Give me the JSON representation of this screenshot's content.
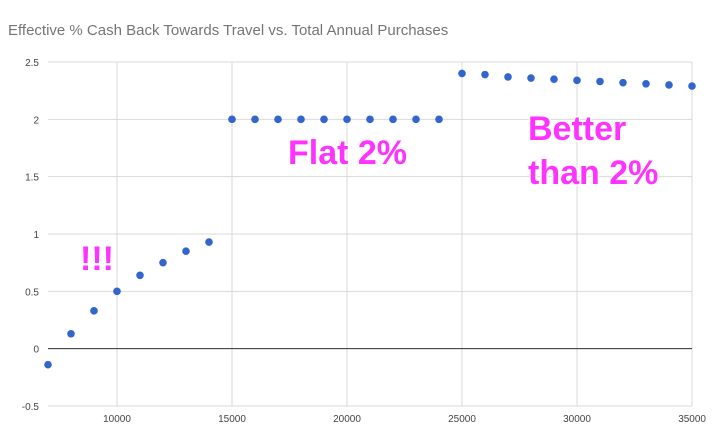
{
  "chart_data": {
    "type": "scatter",
    "title": "Effective % Cash Back Towards Travel vs. Total Annual Purchases",
    "xlabel": "",
    "ylabel": "",
    "xlim": [
      7000,
      35000
    ],
    "ylim": [
      -0.5,
      2.5
    ],
    "x_ticks": [
      10000,
      15000,
      20000,
      25000,
      30000,
      35000
    ],
    "y_ticks": [
      -0.5,
      0,
      0.5,
      1,
      1.5,
      2,
      2.5
    ],
    "x_tick_labels": [
      "10000",
      "15000",
      "20000",
      "25000",
      "30000",
      "35000"
    ],
    "y_tick_labels": [
      "-0.5",
      "0",
      "0.5",
      "1",
      "1.5",
      "2",
      "2.5"
    ],
    "grid": true,
    "legend": "none",
    "point_color": "#3366cc",
    "annotation_color": "#ff33ff",
    "points": [
      {
        "x": 7000,
        "y": -0.14
      },
      {
        "x": 8000,
        "y": 0.13
      },
      {
        "x": 9000,
        "y": 0.33
      },
      {
        "x": 10000,
        "y": 0.5
      },
      {
        "x": 11000,
        "y": 0.64
      },
      {
        "x": 12000,
        "y": 0.75
      },
      {
        "x": 13000,
        "y": 0.85
      },
      {
        "x": 14000,
        "y": 0.93
      },
      {
        "x": 15000,
        "y": 2.0
      },
      {
        "x": 16000,
        "y": 2.0
      },
      {
        "x": 17000,
        "y": 2.0
      },
      {
        "x": 18000,
        "y": 2.0
      },
      {
        "x": 19000,
        "y": 2.0
      },
      {
        "x": 20000,
        "y": 2.0
      },
      {
        "x": 21000,
        "y": 2.0
      },
      {
        "x": 22000,
        "y": 2.0
      },
      {
        "x": 23000,
        "y": 2.0
      },
      {
        "x": 24000,
        "y": 2.0
      },
      {
        "x": 25000,
        "y": 2.4
      },
      {
        "x": 26000,
        "y": 2.39
      },
      {
        "x": 27000,
        "y": 2.37
      },
      {
        "x": 28000,
        "y": 2.36
      },
      {
        "x": 29000,
        "y": 2.35
      },
      {
        "x": 30000,
        "y": 2.34
      },
      {
        "x": 31000,
        "y": 2.33
      },
      {
        "x": 32000,
        "y": 2.32
      },
      {
        "x": 33000,
        "y": 2.31
      },
      {
        "x": 34000,
        "y": 2.3
      },
      {
        "x": 35000,
        "y": 2.29
      }
    ],
    "annotations": [
      {
        "text": "!!!"
      },
      {
        "text": "Flat 2%"
      },
      {
        "text": "Better"
      },
      {
        "text": "than 2%"
      }
    ]
  }
}
